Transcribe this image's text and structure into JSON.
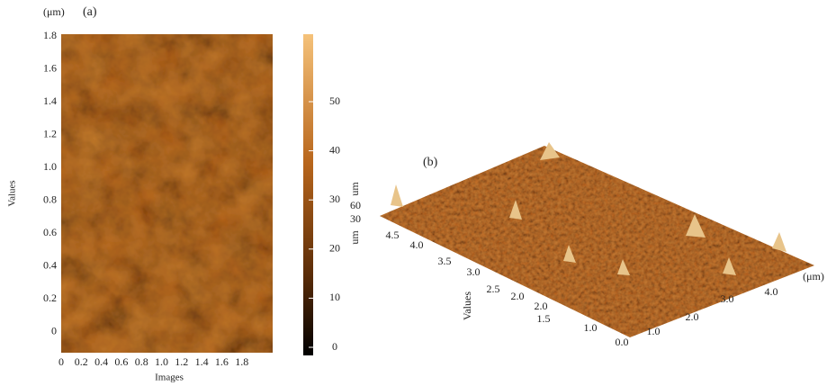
{
  "panel_a": {
    "unit": "(μm)",
    "label": "(a)",
    "y_title": "Values",
    "x_title": "Images",
    "y_ticks": [
      "1.8",
      "1.6",
      "1.4",
      "1.2",
      "1.0",
      "0.8",
      "0.6",
      "0.4",
      "0.2",
      "0"
    ],
    "x_ticks": [
      "0",
      "0.2",
      "0.4",
      "0.6",
      "0.8",
      "1.0",
      "1.2",
      "1.4",
      "1.6",
      "1.8"
    ],
    "colorbar_ticks": [
      "50",
      "40",
      "30",
      "20",
      "10",
      "0"
    ]
  },
  "panel_b": {
    "label": "(b)",
    "z_unit_top": "um",
    "z_ticks": [
      "60",
      "30"
    ],
    "z_unit_bottom": "um",
    "y_title": "Values",
    "y_ticks": [
      "4.5",
      "4.0",
      "3.5",
      "3.0",
      "2.5",
      "2.0",
      "2.0",
      "1.5",
      "1.0",
      "0.0"
    ],
    "x_ticks": [
      "1.0",
      "2.0",
      "3.0",
      "4.0"
    ],
    "x_unit": "(μm)"
  }
}
